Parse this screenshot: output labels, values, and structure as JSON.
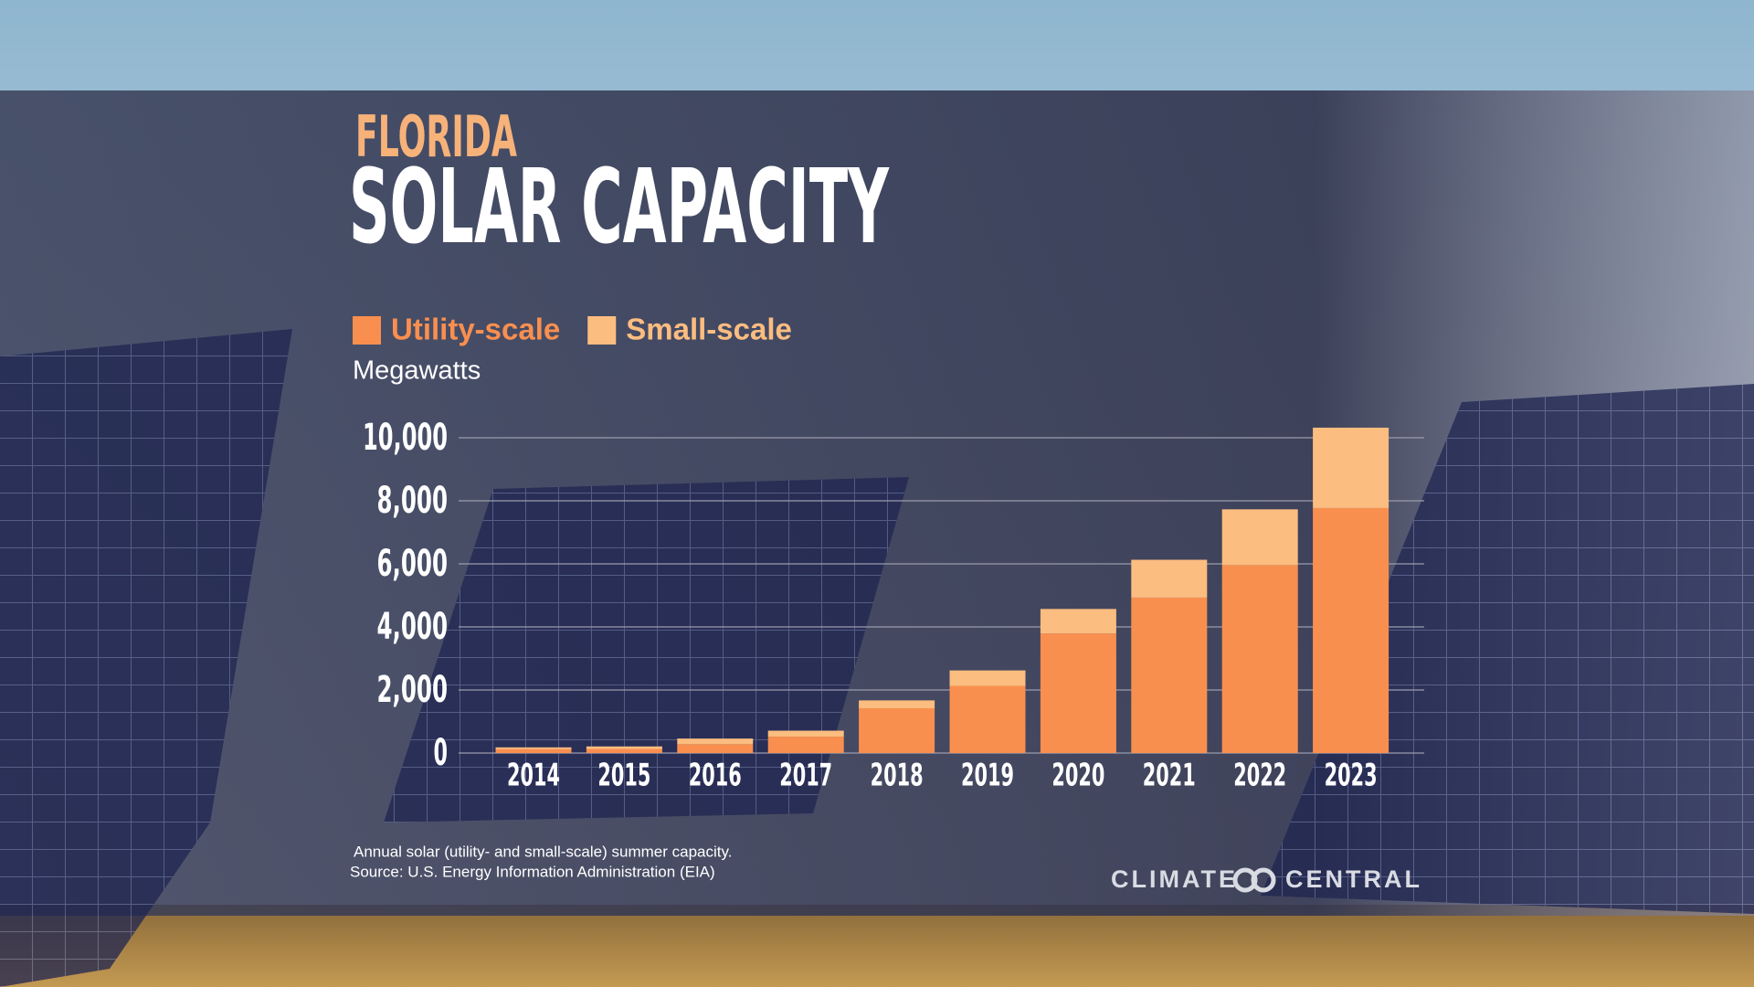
{
  "chart_data": {
    "type": "stacked-bar",
    "supertitle": "FLORIDA",
    "title": "SOLAR CAPACITY",
    "y_label": "Megawatts",
    "categories": [
      "2014",
      "2015",
      "2016",
      "2017",
      "2018",
      "2019",
      "2020",
      "2021",
      "2022",
      "2023"
    ],
    "series": [
      {
        "name": "Utility-scale",
        "color": "#f98f4f",
        "values": [
          120,
          130,
          280,
          520,
          1420,
          2130,
          3790,
          4930,
          5960,
          7770
        ]
      },
      {
        "name": "Small-scale",
        "color": "#fbbd80",
        "values": [
          60,
          80,
          180,
          190,
          250,
          490,
          780,
          1200,
          1770,
          2550
        ]
      }
    ],
    "ylim": [
      0,
      10000
    ],
    "yticks": [
      0,
      {
        "value": 2000,
        "label": "2,000"
      },
      {
        "value": 4000,
        "label": "4,000"
      },
      {
        "value": 6000,
        "label": "6,000"
      },
      {
        "value": 8000,
        "label": "8,000"
      },
      {
        "value": 10000,
        "label": "10,000"
      }
    ],
    "grid": true,
    "note": "Annual solar (utility- and small-scale) summer capacity.",
    "source": "Source: U.S. Energy Information Administration (EIA)",
    "brand": [
      "CLIMATE",
      "CENTRAL"
    ]
  }
}
